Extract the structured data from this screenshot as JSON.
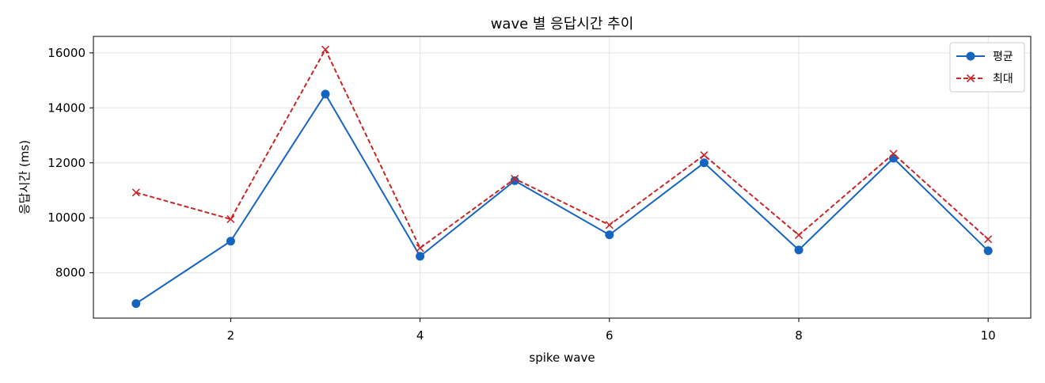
{
  "chart_data": {
    "type": "line",
    "title": "wave 별 응답시간 추이",
    "xlabel": "spike wave",
    "ylabel": "응답시간 (ms)",
    "x": [
      1,
      2,
      3,
      4,
      5,
      6,
      7,
      8,
      9,
      10
    ],
    "xlim": [
      0.55,
      10.45
    ],
    "ylim": [
      6350,
      16600
    ],
    "xticks": [
      2,
      4,
      6,
      8,
      10
    ],
    "yticks": [
      8000,
      10000,
      12000,
      14000,
      16000
    ],
    "grid": true,
    "legend_position": "upper right",
    "series": [
      {
        "name": "평균",
        "values": [
          6880,
          9150,
          14500,
          8600,
          11350,
          9380,
          12000,
          8830,
          12170,
          8800
        ],
        "color": "#1565c0",
        "style": "solid",
        "marker": "circle"
      },
      {
        "name": "최대",
        "values": [
          10920,
          9950,
          16120,
          8900,
          11420,
          9740,
          12280,
          9370,
          12330,
          9220
        ],
        "color": "#c62828",
        "style": "dashed",
        "marker": "x"
      }
    ]
  }
}
